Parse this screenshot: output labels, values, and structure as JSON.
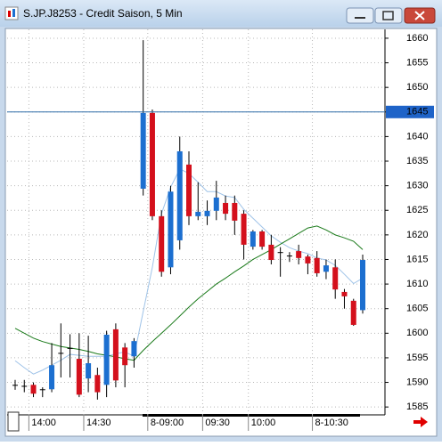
{
  "window_title": "S.JP.J8253 - Credit Saison, 5 Min",
  "chart_data": {
    "type": "candlestick",
    "categories": [
      null,
      null,
      "14:00",
      null,
      null,
      null,
      null,
      null,
      "14:30",
      null,
      null,
      null,
      null,
      null,
      null,
      "8-09:00",
      null,
      null,
      null,
      null,
      null,
      "09:30",
      null,
      null,
      null,
      null,
      "10:00",
      null,
      null,
      null,
      null,
      null,
      null,
      "8-10:30",
      null,
      null,
      null,
      null,
      null
    ],
    "open": [
      1589.5,
      1589.3,
      1589.5,
      1588.6,
      1588.6,
      1596,
      1597,
      1594.8,
      1590.8,
      1591.5,
      1589.5,
      1600.8,
      1597.1,
      1595.3,
      1629.4,
      1644.8,
      1623.8,
      1613.4,
      1618.9,
      1634.3,
      1623.8,
      1623.8,
      1624.9,
      1626.5,
      1626.5,
      1624.3,
      1617.6,
      1620.7,
      1618,
      1616.5,
      1615.8,
      1616.7,
      1615.6,
      1615.3,
      1612.5,
      1613.4,
      1608.4,
      1606.6,
      1604.7
    ],
    "high": [
      1590.5,
      1590.5,
      1590,
      1589,
      1598,
      1602,
      1599.8,
      1600,
      1599.5,
      1593,
      1600.5,
      1602,
      1598,
      1599,
      1659.6,
      1645.5,
      1625,
      1630,
      1640,
      1637,
      1630.7,
      1627,
      1631,
      1628,
      1628,
      1625,
      1621,
      1621,
      1620,
      1617.5,
      1616.5,
      1618,
      1616,
      1616.7,
      1615,
      1615,
      1609,
      1607,
      1616
    ],
    "low": [
      1588.5,
      1588,
      1587,
      1587,
      1588,
      1591,
      1591,
      1587,
      1588,
      1586.5,
      1587,
      1589,
      1589,
      1593,
      1628,
      1623,
      1611.5,
      1612,
      1617,
      1622,
      1623,
      1622,
      1623,
      1623,
      1620,
      1615,
      1617,
      1617,
      1614,
      1611.5,
      1614.5,
      1614,
      1612,
      1611.5,
      1611,
      1607,
      1605,
      1601.5,
      1604
    ],
    "close": [
      1589.5,
      1589.3,
      1587.7,
      1588.6,
      1593.5,
      1596,
      1597,
      1587.5,
      1593.9,
      1588,
      1599.7,
      1590.4,
      1593.5,
      1598.4,
      1644.8,
      1623.8,
      1612.5,
      1628.8,
      1637,
      1623.8,
      1624.7,
      1624.9,
      1627.6,
      1624.3,
      1622.9,
      1618,
      1620.7,
      1617.6,
      1614.9,
      1616.5,
      1615.8,
      1615.3,
      1614.2,
      1612.2,
      1613.8,
      1608.9,
      1607.5,
      1601.7,
      1614.9
    ],
    "up_color": "#1c6fd0",
    "down_color": "#d4101c",
    "flat_color": "#000000",
    "series": [
      {
        "color": "#9fc3e8",
        "values": [
          1594.4,
          1593,
          1591.7,
          1592.5,
          1593.5,
          1594.5,
          1595.7,
          1595.5,
          1595.3,
          1595.3,
          1595.3,
          1595.8,
          1596.2,
          1595.3,
          1604.4,
          1613.4,
          1624.3,
          1629.7,
          1633.4,
          1632.5,
          1630.7,
          1628.8,
          1628.8,
          1627.9,
          1627.6,
          1625.2,
          1623.4,
          1621.6,
          1619.8,
          1618.5,
          1617.4,
          1616.7,
          1616.2,
          1615.3,
          1614.9,
          1613.8,
          1612,
          1610.1,
          1611.2
        ]
      },
      {
        "color": "#1a7a1a",
        "values": [
          1601,
          1600,
          1599,
          1598.3,
          1597.8,
          1597.3,
          1597,
          1596.7,
          1596.3,
          1595.8,
          1595.5,
          1595.2,
          1594.8,
          1594.5,
          1596.5,
          1598.3,
          1600,
          1601.7,
          1603.5,
          1605.3,
          1607,
          1608.5,
          1610,
          1611.2,
          1612.5,
          1613.7,
          1615,
          1616,
          1617,
          1618.1,
          1619.2,
          1620.3,
          1621.4,
          1621.8,
          1621,
          1620,
          1619.4,
          1618.7,
          1617
        ]
      }
    ],
    "price_line": 1645,
    "ylim": [
      1583.4,
      1661.8
    ],
    "yticks": [
      1585,
      1590,
      1595,
      1600,
      1605,
      1610,
      1615,
      1620,
      1625,
      1630,
      1635,
      1640,
      1645,
      1650,
      1655,
      1660
    ],
    "grid": true
  }
}
